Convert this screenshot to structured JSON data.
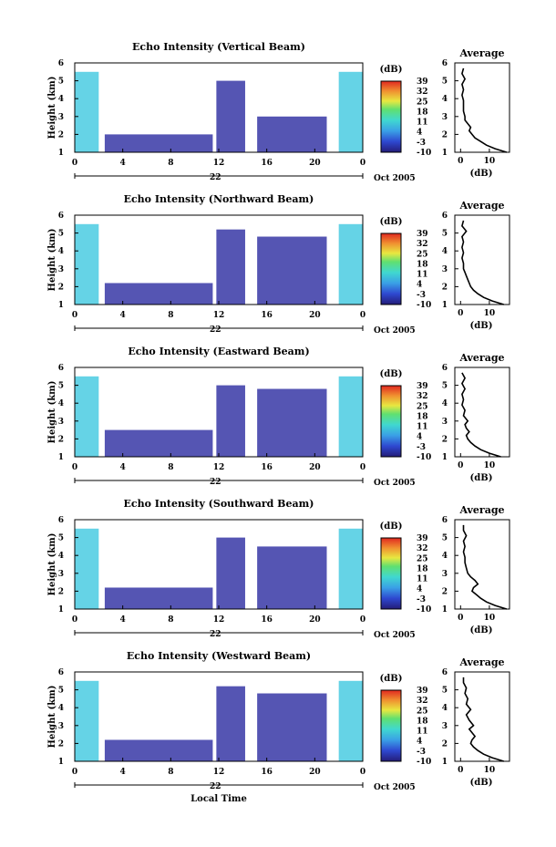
{
  "figure": {
    "date_label": "Oct 2005",
    "x_title": "Local Time",
    "y_label": "Height (km)",
    "colorbar_unit": "(dB)",
    "avg_title": "Average",
    "avg_xlabel": "(dB)",
    "day_label": "22"
  },
  "chart_data": [
    {
      "type": "heatmap",
      "title": "Echo Intensity (Vertical Beam)",
      "x_ticks": [
        "0",
        "4",
        "8",
        "12",
        "16",
        "20",
        "0"
      ],
      "x_range_hours": [
        0,
        24
      ],
      "y_ticks": [
        "1",
        "2",
        "3",
        "4",
        "5",
        "6"
      ],
      "y_range_km": [
        1,
        6
      ],
      "colorbar_ticks": [
        "-10",
        "-3",
        "4",
        "11",
        "18",
        "25",
        "32",
        "39"
      ],
      "colorbar_range_db": [
        -10,
        39
      ],
      "colors": {
        "low": "#2b2ba0",
        "mid": "#3fc8e0",
        "high": "#e03020"
      },
      "echo_blocks": [
        {
          "t0": 0.0,
          "t1": 2.0,
          "h0": 1.0,
          "h1": 5.5,
          "db": 22
        },
        {
          "t0": 2.5,
          "t1": 11.5,
          "h0": 1.0,
          "h1": 2.0,
          "db": 4
        },
        {
          "t0": 11.8,
          "t1": 14.2,
          "h0": 1.0,
          "h1": 5.0,
          "db": 2
        },
        {
          "t0": 15.2,
          "t1": 21.0,
          "h0": 1.0,
          "h1": 3.0,
          "db": 6
        },
        {
          "t0": 22.0,
          "t1": 24.0,
          "h0": 1.0,
          "h1": 5.5,
          "db": 22
        }
      ],
      "average_profile": {
        "x_ticks": [
          "0",
          "10"
        ],
        "y_ticks": [
          "1",
          "2",
          "3",
          "4",
          "5",
          "6"
        ],
        "x_range_db": [
          -2,
          17
        ],
        "height_km": [
          1.0,
          1.2,
          1.4,
          1.6,
          1.8,
          2.0,
          2.2,
          2.4,
          2.6,
          2.8,
          3.0,
          3.3,
          3.6,
          3.9,
          4.2,
          4.5,
          4.8,
          5.1,
          5.4,
          5.7
        ],
        "db": [
          16.0,
          12.0,
          9.0,
          7.0,
          5.0,
          4.0,
          3.0,
          3.5,
          2.5,
          1.5,
          1.5,
          1.0,
          1.0,
          1.0,
          0.5,
          1.0,
          0.5,
          1.5,
          0.5,
          1.0
        ]
      }
    },
    {
      "type": "heatmap",
      "title": "Echo Intensity (Northward Beam)",
      "x_ticks": [
        "0",
        "4",
        "8",
        "12",
        "16",
        "20",
        "0"
      ],
      "x_range_hours": [
        0,
        24
      ],
      "y_ticks": [
        "1",
        "2",
        "3",
        "4",
        "5",
        "6"
      ],
      "y_range_km": [
        1,
        6
      ],
      "colorbar_ticks": [
        "-10",
        "-3",
        "4",
        "11",
        "18",
        "25",
        "32",
        "39"
      ],
      "colorbar_range_db": [
        -10,
        39
      ],
      "colors": {
        "low": "#2b2ba0",
        "mid": "#3fc8e0",
        "high": "#e03020"
      },
      "echo_blocks": [
        {
          "t0": 0.0,
          "t1": 2.0,
          "h0": 1.0,
          "h1": 5.5,
          "db": 22
        },
        {
          "t0": 2.5,
          "t1": 11.5,
          "h0": 1.0,
          "h1": 2.2,
          "db": 4
        },
        {
          "t0": 11.8,
          "t1": 14.2,
          "h0": 1.0,
          "h1": 5.2,
          "db": 2
        },
        {
          "t0": 15.2,
          "t1": 21.0,
          "h0": 1.0,
          "h1": 4.8,
          "db": 4
        },
        {
          "t0": 22.0,
          "t1": 24.0,
          "h0": 1.0,
          "h1": 5.5,
          "db": 22
        }
      ],
      "average_profile": {
        "x_ticks": [
          "0",
          "10"
        ],
        "y_ticks": [
          "1",
          "2",
          "3",
          "4",
          "5",
          "6"
        ],
        "x_range_db": [
          -2,
          17
        ],
        "height_km": [
          1.0,
          1.2,
          1.4,
          1.6,
          1.8,
          2.0,
          2.2,
          2.4,
          2.6,
          2.8,
          3.0,
          3.3,
          3.6,
          3.9,
          4.2,
          4.5,
          4.8,
          5.1,
          5.4,
          5.7
        ],
        "db": [
          15.0,
          11.0,
          8.0,
          6.0,
          4.5,
          3.5,
          3.0,
          2.5,
          2.0,
          1.5,
          1.0,
          1.0,
          0.5,
          1.0,
          0.5,
          1.0,
          0.5,
          2.0,
          0.5,
          1.0
        ]
      }
    },
    {
      "type": "heatmap",
      "title": "Echo Intensity (Eastward Beam)",
      "x_ticks": [
        "0",
        "4",
        "8",
        "12",
        "16",
        "20",
        "0"
      ],
      "x_range_hours": [
        0,
        24
      ],
      "y_ticks": [
        "1",
        "2",
        "3",
        "4",
        "5",
        "6"
      ],
      "y_range_km": [
        1,
        6
      ],
      "colorbar_ticks": [
        "-10",
        "-3",
        "4",
        "11",
        "18",
        "25",
        "32",
        "39"
      ],
      "colorbar_range_db": [
        -10,
        39
      ],
      "colors": {
        "low": "#2b2ba0",
        "mid": "#3fc8e0",
        "high": "#e03020"
      },
      "echo_blocks": [
        {
          "t0": 0.0,
          "t1": 2.0,
          "h0": 1.0,
          "h1": 5.5,
          "db": 22
        },
        {
          "t0": 2.5,
          "t1": 11.5,
          "h0": 1.0,
          "h1": 2.5,
          "db": 4
        },
        {
          "t0": 11.8,
          "t1": 14.2,
          "h0": 1.0,
          "h1": 5.0,
          "db": 2
        },
        {
          "t0": 15.2,
          "t1": 21.0,
          "h0": 1.0,
          "h1": 4.8,
          "db": 4
        },
        {
          "t0": 22.0,
          "t1": 24.0,
          "h0": 1.0,
          "h1": 5.5,
          "db": 22
        }
      ],
      "average_profile": {
        "x_ticks": [
          "0",
          "10"
        ],
        "y_ticks": [
          "1",
          "2",
          "3",
          "4",
          "5",
          "6"
        ],
        "x_range_db": [
          -2,
          17
        ],
        "height_km": [
          1.0,
          1.2,
          1.4,
          1.6,
          1.8,
          2.0,
          2.2,
          2.4,
          2.6,
          2.8,
          3.0,
          3.3,
          3.6,
          3.9,
          4.2,
          4.5,
          4.8,
          5.1,
          5.4,
          5.7
        ],
        "db": [
          14.0,
          10.0,
          7.0,
          5.0,
          3.5,
          2.5,
          2.0,
          3.0,
          2.0,
          1.5,
          2.5,
          1.0,
          1.5,
          0.5,
          1.0,
          0.5,
          1.5,
          0.5,
          1.5,
          0.5
        ]
      }
    },
    {
      "type": "heatmap",
      "title": "Echo Intensity (Southward Beam)",
      "x_ticks": [
        "0",
        "4",
        "8",
        "12",
        "16",
        "20",
        "0"
      ],
      "x_range_hours": [
        0,
        24
      ],
      "y_ticks": [
        "1",
        "2",
        "3",
        "4",
        "5",
        "6"
      ],
      "y_range_km": [
        1,
        6
      ],
      "colorbar_ticks": [
        "-10",
        "-3",
        "4",
        "11",
        "18",
        "25",
        "32",
        "39"
      ],
      "colorbar_range_db": [
        -10,
        39
      ],
      "colors": {
        "low": "#2b2ba0",
        "mid": "#3fc8e0",
        "high": "#e03020"
      },
      "echo_blocks": [
        {
          "t0": 0.0,
          "t1": 2.0,
          "h0": 1.0,
          "h1": 5.5,
          "db": 22
        },
        {
          "t0": 2.5,
          "t1": 11.5,
          "h0": 1.0,
          "h1": 2.2,
          "db": 4
        },
        {
          "t0": 11.8,
          "t1": 14.2,
          "h0": 1.0,
          "h1": 5.0,
          "db": 2
        },
        {
          "t0": 15.2,
          "t1": 21.0,
          "h0": 1.0,
          "h1": 4.5,
          "db": 4
        },
        {
          "t0": 22.0,
          "t1": 24.0,
          "h0": 1.0,
          "h1": 5.5,
          "db": 22
        }
      ],
      "average_profile": {
        "x_ticks": [
          "0",
          "10"
        ],
        "y_ticks": [
          "1",
          "2",
          "3",
          "4",
          "5",
          "6"
        ],
        "x_range_db": [
          -2,
          17
        ],
        "height_km": [
          1.0,
          1.2,
          1.4,
          1.6,
          1.8,
          2.0,
          2.2,
          2.4,
          2.6,
          2.8,
          3.0,
          3.3,
          3.6,
          3.9,
          4.2,
          4.5,
          4.8,
          5.1,
          5.4,
          5.7
        ],
        "db": [
          16.0,
          12.0,
          9.0,
          7.0,
          5.5,
          4.0,
          4.5,
          6.0,
          5.0,
          3.5,
          2.5,
          2.0,
          1.5,
          1.5,
          1.0,
          1.5,
          1.0,
          2.0,
          1.0,
          1.0
        ]
      }
    },
    {
      "type": "heatmap",
      "title": "Echo Intensity (Westward Beam)",
      "x_ticks": [
        "0",
        "4",
        "8",
        "12",
        "16",
        "20",
        "0"
      ],
      "x_range_hours": [
        0,
        24
      ],
      "y_ticks": [
        "1",
        "2",
        "3",
        "4",
        "5",
        "6"
      ],
      "y_range_km": [
        1,
        6
      ],
      "colorbar_ticks": [
        "-10",
        "-3",
        "4",
        "11",
        "18",
        "25",
        "32",
        "39"
      ],
      "colorbar_range_db": [
        -10,
        39
      ],
      "colors": {
        "low": "#2b2ba0",
        "mid": "#3fc8e0",
        "high": "#e03020"
      },
      "echo_blocks": [
        {
          "t0": 0.0,
          "t1": 2.0,
          "h0": 1.0,
          "h1": 5.5,
          "db": 22
        },
        {
          "t0": 2.5,
          "t1": 11.5,
          "h0": 1.0,
          "h1": 2.2,
          "db": 4
        },
        {
          "t0": 11.8,
          "t1": 14.2,
          "h0": 1.0,
          "h1": 5.2,
          "db": 2
        },
        {
          "t0": 15.2,
          "t1": 21.0,
          "h0": 1.0,
          "h1": 4.8,
          "db": 4
        },
        {
          "t0": 22.0,
          "t1": 24.0,
          "h0": 1.0,
          "h1": 5.5,
          "db": 22
        }
      ],
      "average_profile": {
        "x_ticks": [
          "0",
          "10"
        ],
        "y_ticks": [
          "1",
          "2",
          "3",
          "4",
          "5",
          "6"
        ],
        "x_range_db": [
          -2,
          17
        ],
        "height_km": [
          1.0,
          1.2,
          1.4,
          1.6,
          1.8,
          2.0,
          2.2,
          2.4,
          2.6,
          2.8,
          3.0,
          3.3,
          3.6,
          3.9,
          4.2,
          4.5,
          4.8,
          5.1,
          5.4,
          5.7
        ],
        "db": [
          15.0,
          11.0,
          8.0,
          6.0,
          4.5,
          3.5,
          4.0,
          5.0,
          4.0,
          3.0,
          4.5,
          3.0,
          2.0,
          3.5,
          2.0,
          2.5,
          1.5,
          2.0,
          1.0,
          1.0
        ]
      }
    }
  ]
}
